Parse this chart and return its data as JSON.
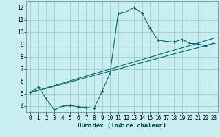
{
  "xlabel": "Humidex (Indice chaleur)",
  "bg_color": "#c8eef0",
  "grid_color": "#a0cccc",
  "line_color": "#006868",
  "xlim": [
    -0.5,
    23.5
  ],
  "ylim": [
    3.5,
    12.5
  ],
  "xticks": [
    0,
    1,
    2,
    3,
    4,
    5,
    6,
    7,
    8,
    9,
    10,
    11,
    12,
    13,
    14,
    15,
    16,
    17,
    18,
    19,
    20,
    21,
    22,
    23
  ],
  "yticks": [
    4,
    5,
    6,
    7,
    8,
    9,
    10,
    11,
    12
  ],
  "curve1_x": [
    0,
    1,
    2,
    3,
    4,
    5,
    6,
    7,
    8,
    9,
    10,
    11,
    12,
    13,
    14,
    15,
    16,
    17,
    18,
    19,
    20,
    21,
    22,
    23
  ],
  "curve1_y": [
    5.1,
    5.55,
    4.6,
    3.7,
    4.0,
    4.05,
    3.95,
    3.9,
    3.85,
    5.2,
    6.7,
    11.5,
    11.65,
    12.0,
    11.55,
    10.35,
    9.35,
    9.25,
    9.2,
    9.4,
    9.1,
    9.05,
    8.9,
    9.1
  ],
  "curve2_x": [
    0,
    23
  ],
  "curve2_y": [
    5.1,
    9.1
  ],
  "curve3_x": [
    0,
    23
  ],
  "curve3_y": [
    5.1,
    9.5
  ],
  "xlabel_fontsize": 6.5,
  "tick_fontsize": 5.5
}
